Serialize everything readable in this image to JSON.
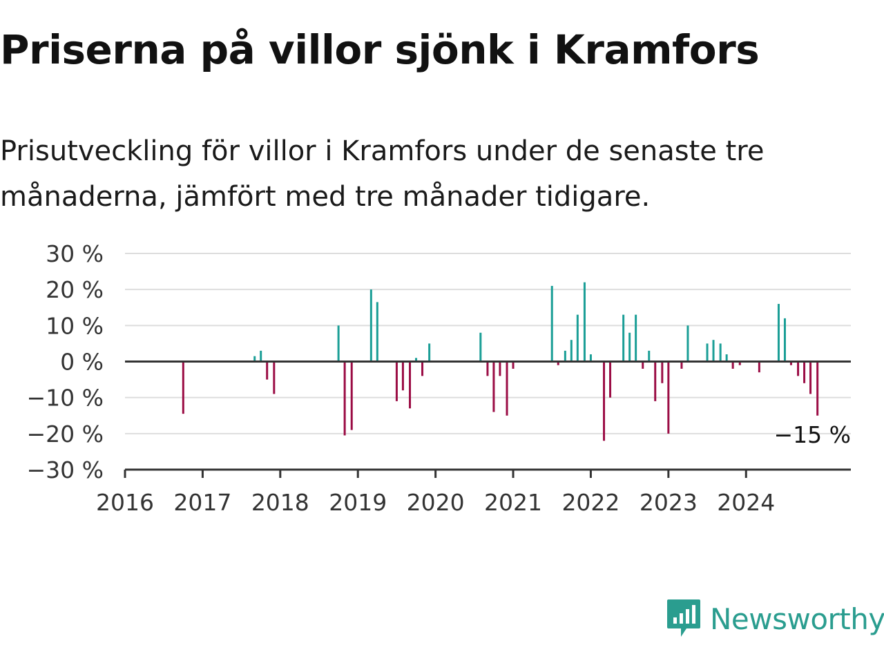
{
  "title": "Priserna på villor sjönk i Kramfors",
  "subtitle": "Prisutveckling för villor i Kramfors under de senaste tre månaderna, jämfört med tre månader tidigare.",
  "colors": {
    "positive": "#1a9e96",
    "negative": "#9b0d45",
    "grid": "#dddddd",
    "axis": "#333333",
    "brand": "#2a9d8f"
  },
  "brand": {
    "name": "Newsworthy",
    "icon": "newsworthy-logo-icon"
  },
  "chart_data": {
    "type": "bar",
    "ylim": [
      -30,
      30
    ],
    "yticks": [
      30,
      20,
      10,
      0,
      -10,
      -20,
      -30
    ],
    "ytick_labels": [
      "30 %",
      "20 %",
      "10 %",
      "0 %",
      "−10 %",
      "−20 %",
      "−30 %"
    ],
    "xlim": [
      2016.0,
      2025.35
    ],
    "xticks": [
      2016,
      2017,
      2018,
      2019,
      2020,
      2021,
      2022,
      2023,
      2024
    ],
    "xtick_labels": [
      "2016",
      "2017",
      "2018",
      "2019",
      "2020",
      "2021",
      "2022",
      "2023",
      "2024"
    ],
    "grid": true,
    "end_label": "−15 %",
    "points": [
      {
        "x": 2016.75,
        "y": -14.5
      },
      {
        "x": 2017.67,
        "y": 1.5
      },
      {
        "x": 2017.75,
        "y": 3
      },
      {
        "x": 2017.83,
        "y": -5
      },
      {
        "x": 2017.92,
        "y": -9
      },
      {
        "x": 2018.75,
        "y": 10
      },
      {
        "x": 2018.83,
        "y": -20.5
      },
      {
        "x": 2018.92,
        "y": -19
      },
      {
        "x": 2019.17,
        "y": 20
      },
      {
        "x": 2019.25,
        "y": 16.5
      },
      {
        "x": 2019.5,
        "y": -11
      },
      {
        "x": 2019.58,
        "y": -8
      },
      {
        "x": 2019.67,
        "y": -13
      },
      {
        "x": 2019.75,
        "y": 1
      },
      {
        "x": 2019.83,
        "y": -4
      },
      {
        "x": 2019.92,
        "y": 5
      },
      {
        "x": 2020.58,
        "y": 8
      },
      {
        "x": 2020.67,
        "y": -4
      },
      {
        "x": 2020.75,
        "y": -14
      },
      {
        "x": 2020.83,
        "y": -4
      },
      {
        "x": 2020.92,
        "y": -15
      },
      {
        "x": 2021.0,
        "y": -2
      },
      {
        "x": 2021.5,
        "y": 21
      },
      {
        "x": 2021.58,
        "y": -1
      },
      {
        "x": 2021.67,
        "y": 3
      },
      {
        "x": 2021.75,
        "y": 6
      },
      {
        "x": 2021.83,
        "y": 13
      },
      {
        "x": 2021.92,
        "y": 22
      },
      {
        "x": 2022.0,
        "y": 2
      },
      {
        "x": 2022.17,
        "y": -22
      },
      {
        "x": 2022.25,
        "y": -10
      },
      {
        "x": 2022.42,
        "y": 13
      },
      {
        "x": 2022.5,
        "y": 8
      },
      {
        "x": 2022.58,
        "y": 13
      },
      {
        "x": 2022.67,
        "y": -2
      },
      {
        "x": 2022.75,
        "y": 3
      },
      {
        "x": 2022.83,
        "y": -11
      },
      {
        "x": 2022.92,
        "y": -6
      },
      {
        "x": 2023.0,
        "y": -20
      },
      {
        "x": 2023.17,
        "y": -2
      },
      {
        "x": 2023.25,
        "y": 10
      },
      {
        "x": 2023.5,
        "y": 5
      },
      {
        "x": 2023.58,
        "y": 6
      },
      {
        "x": 2023.67,
        "y": 5
      },
      {
        "x": 2023.75,
        "y": 2
      },
      {
        "x": 2023.83,
        "y": -2
      },
      {
        "x": 2023.92,
        "y": -1
      },
      {
        "x": 2024.17,
        "y": -3
      },
      {
        "x": 2024.42,
        "y": 16
      },
      {
        "x": 2024.5,
        "y": 12
      },
      {
        "x": 2024.58,
        "y": -1
      },
      {
        "x": 2024.67,
        "y": -4
      },
      {
        "x": 2024.75,
        "y": -6
      },
      {
        "x": 2024.83,
        "y": -9
      },
      {
        "x": 2024.92,
        "y": -15
      }
    ]
  }
}
